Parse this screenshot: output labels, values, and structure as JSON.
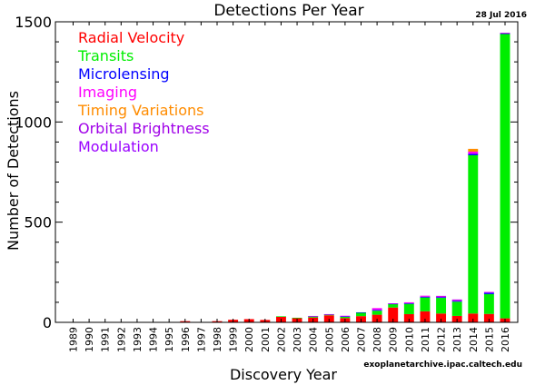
{
  "chart_data": {
    "type": "bar",
    "stacked": true,
    "title": "Detections Per Year",
    "date": "28 Jul 2016",
    "xlabel": "Discovery Year",
    "ylabel": "Number of Detections",
    "source": "exoplanetarchive.ipac.caltech.edu",
    "ylim": [
      0,
      1500
    ],
    "yticks": [
      0,
      500,
      1000,
      1500
    ],
    "grid": false,
    "legend_position": "top-left",
    "categories": [
      "1989",
      "1990",
      "1991",
      "1992",
      "1993",
      "1994",
      "1995",
      "1996",
      "1997",
      "1998",
      "1999",
      "2000",
      "2001",
      "2002",
      "2003",
      "2004",
      "2005",
      "2006",
      "2007",
      "2008",
      "2009",
      "2010",
      "2011",
      "2012",
      "2013",
      "2014",
      "2015",
      "2016"
    ],
    "series": [
      {
        "name": "Radial Velocity",
        "color": "#ff0000",
        "values": [
          1,
          0,
          0,
          0,
          0,
          0,
          1,
          6,
          1,
          6,
          13,
          16,
          12,
          29,
          22,
          24,
          35,
          21,
          31,
          38,
          74,
          41,
          55,
          44,
          32,
          44,
          42,
          20
        ]
      },
      {
        "name": "Transits",
        "color": "#00ee00",
        "values": [
          0,
          0,
          0,
          0,
          0,
          0,
          0,
          0,
          0,
          0,
          0,
          0,
          0,
          1,
          1,
          5,
          4,
          7,
          18,
          20,
          18,
          51,
          69,
          78,
          71,
          790,
          99,
          1419
        ]
      },
      {
        "name": "Microlensing",
        "color": "#0000ff",
        "values": [
          0,
          0,
          0,
          0,
          0,
          0,
          0,
          0,
          0,
          0,
          0,
          0,
          0,
          0,
          0,
          2,
          1,
          2,
          1,
          4,
          1,
          3,
          4,
          4,
          4,
          7,
          7,
          4
        ]
      },
      {
        "name": "Imaging",
        "color": "#ff00ff",
        "values": [
          0,
          0,
          0,
          0,
          0,
          0,
          0,
          0,
          0,
          0,
          0,
          0,
          0,
          0,
          0,
          1,
          1,
          3,
          0,
          9,
          2,
          5,
          5,
          4,
          5,
          11,
          4,
          1
        ]
      },
      {
        "name": "Timing Variations",
        "color": "#ff8c00",
        "values": [
          0,
          0,
          0,
          0,
          0,
          0,
          0,
          0,
          0,
          0,
          0,
          0,
          0,
          0,
          0,
          0,
          0,
          0,
          0,
          0,
          0,
          0,
          0,
          0,
          0,
          14,
          0,
          0
        ]
      },
      {
        "name": "Orbital Brightness",
        "color": "#a000e8",
        "values": [
          0,
          0,
          0,
          0,
          0,
          0,
          0,
          0,
          0,
          0,
          0,
          0,
          0,
          0,
          0,
          0,
          0,
          0,
          0,
          0,
          0,
          0,
          0,
          2,
          2,
          0,
          0,
          1
        ]
      },
      {
        "name": "Modulation",
        "color": "#9900ff",
        "values": [
          0,
          0,
          0,
          0,
          0,
          0,
          0,
          0,
          0,
          0,
          0,
          0,
          0,
          0,
          0,
          0,
          0,
          0,
          0,
          0,
          0,
          0,
          0,
          0,
          0,
          0,
          0,
          0
        ]
      }
    ]
  }
}
